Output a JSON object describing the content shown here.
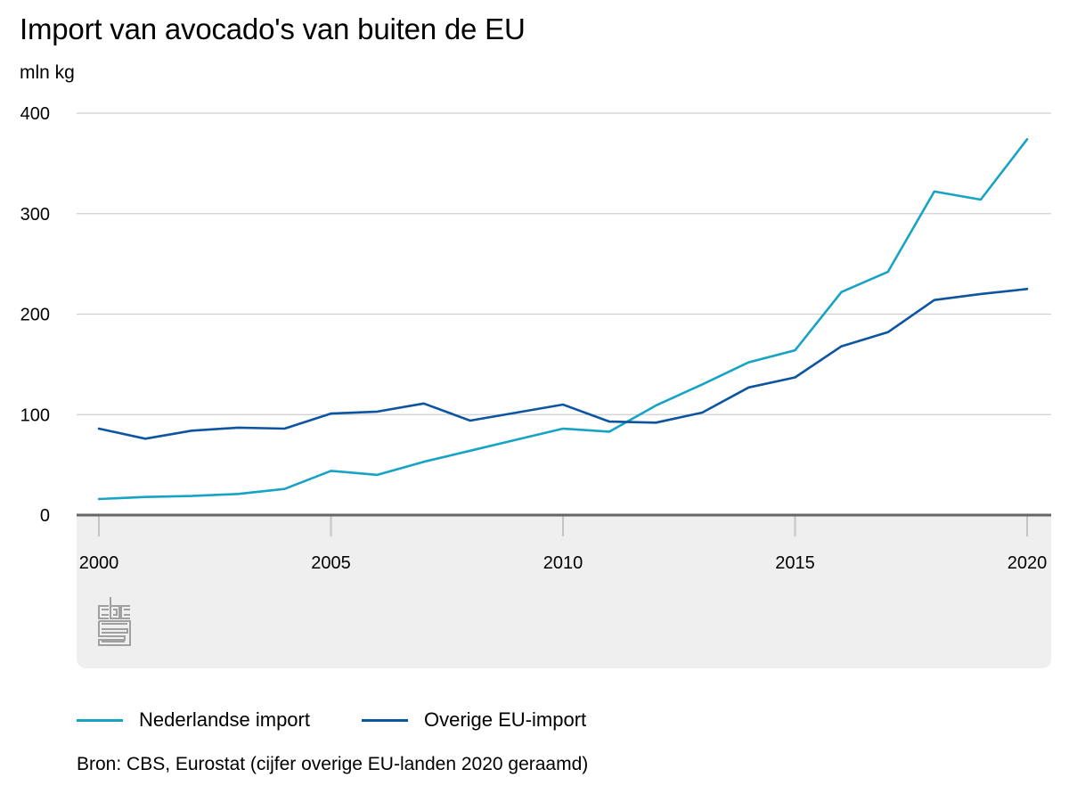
{
  "colors": {
    "nl": "#17a3c4",
    "eu": "#0d55a0",
    "grid": "#cfcfcf",
    "axis": "#666666",
    "panel": "#efefef",
    "logo": "#a0a0a0"
  },
  "logo": {
    "name": "cbs-logo",
    "text": "cbs"
  },
  "legend": {
    "items": [
      {
        "label": "Nederlandse import",
        "color": "#17a3c4"
      },
      {
        "label": "Overige EU-import",
        "color": "#0d55a0"
      }
    ]
  },
  "source": "Bron: CBS, Eurostat (cijfer overige EU-landen 2020 geraamd)",
  "chart_data": {
    "type": "line",
    "title": "Import van avocado's van buiten de EU",
    "ylabel": "mln kg",
    "xlabel": "",
    "ylim": [
      0,
      400
    ],
    "yticks": [
      "0",
      "100",
      "200",
      "300",
      "400"
    ],
    "xlim": [
      2000,
      2020
    ],
    "xticks": [
      "2000",
      "2005",
      "2010",
      "2015",
      "2020"
    ],
    "x": [
      2000,
      2001,
      2002,
      2003,
      2004,
      2005,
      2006,
      2007,
      2008,
      2009,
      2010,
      2011,
      2012,
      2013,
      2014,
      2015,
      2016,
      2017,
      2018,
      2019,
      2020
    ],
    "series": [
      {
        "name": "Nederlandse import",
        "color": "#17a3c4",
        "values": [
          16,
          18,
          19,
          21,
          26,
          44,
          40,
          53,
          64,
          75,
          86,
          83,
          109,
          130,
          152,
          164,
          222,
          242,
          322,
          314,
          374
        ]
      },
      {
        "name": "Overige EU-import",
        "color": "#0d55a0",
        "values": [
          86,
          76,
          84,
          87,
          86,
          101,
          103,
          111,
          94,
          102,
          110,
          93,
          92,
          102,
          127,
          137,
          168,
          182,
          214,
          220,
          225
        ]
      }
    ]
  }
}
